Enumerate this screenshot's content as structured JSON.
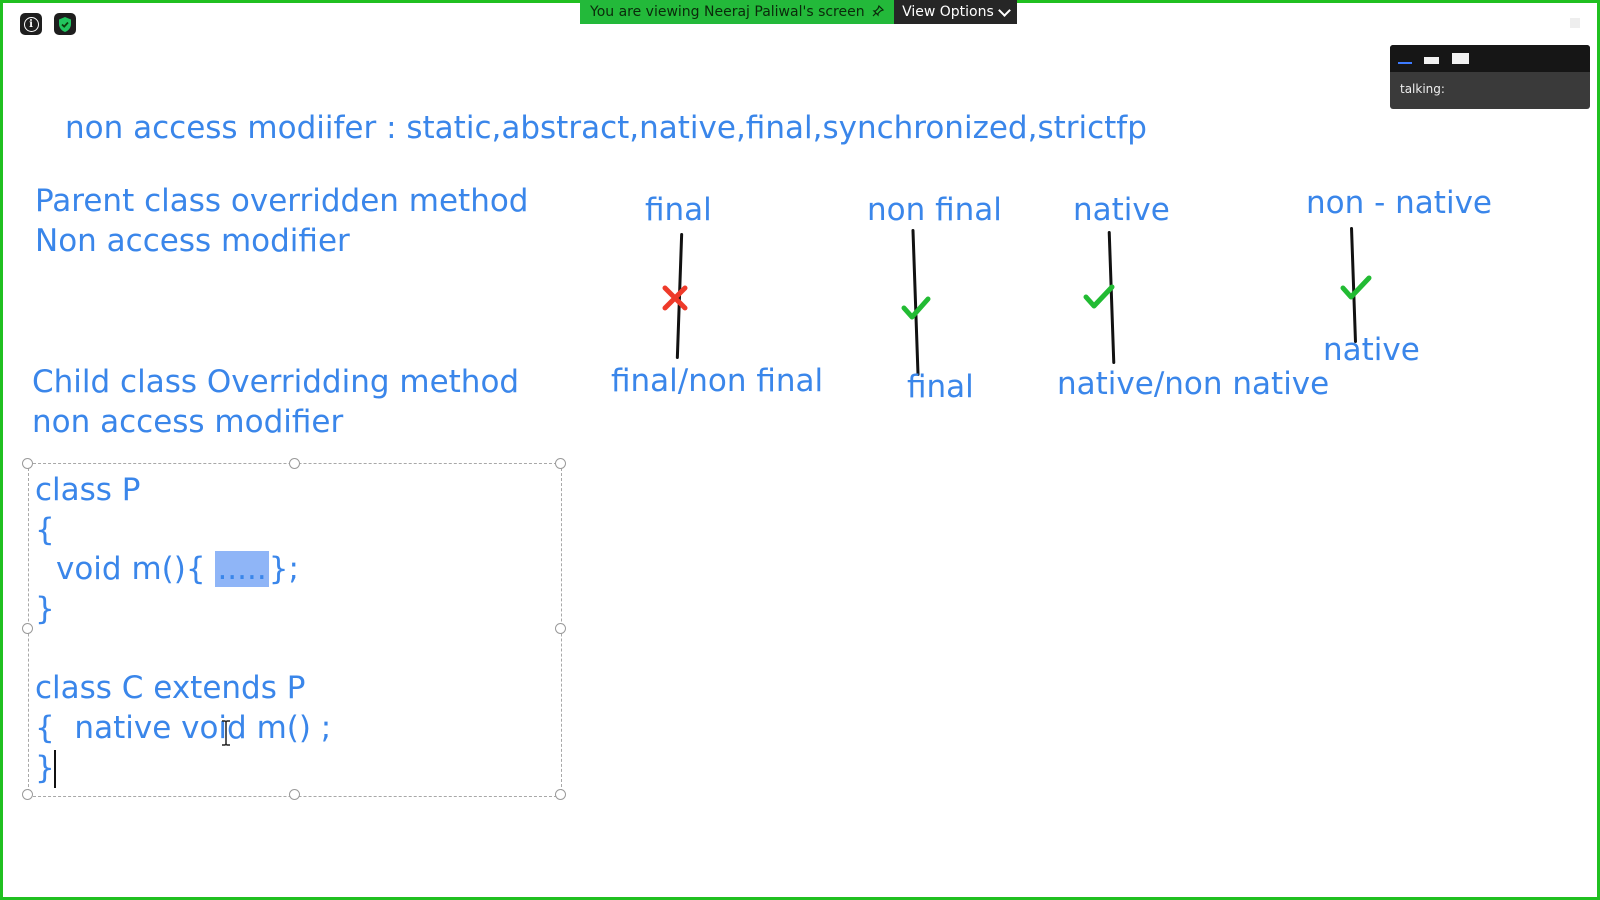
{
  "zoom_bar": {
    "viewing_text": "You are viewing Neeraj Paliwal's screen",
    "options_label": "View Options",
    "talking_label": "talking:"
  },
  "icons": [
    "info-icon",
    "shield-check-icon",
    "pin-icon",
    "chevron-down-icon",
    "check-mark-icon",
    "cross-mark-icon",
    "text-cursor-icon"
  ],
  "colors": {
    "text_blue": "#3a86ea",
    "check_green": "#22bb33",
    "cross_red": "#ee3a2a",
    "frame_green": "#20c020"
  },
  "slide": {
    "header": "non access modiifer : static,abstract,native,final,synchronized,strictfp",
    "parent_label_1": "Parent class overridden method",
    "parent_label_2": "Non access modifier",
    "child_label_1": "Child class Overridding method",
    "child_label_2": "non access modifier",
    "cases": [
      {
        "parent": "final",
        "child": "final/non final",
        "allowed": false
      },
      {
        "parent": "non final",
        "child": "final",
        "allowed": true
      },
      {
        "parent": "native",
        "child": "native/non native",
        "allowed": true
      },
      {
        "parent": "non - native",
        "child": "native",
        "allowed": true
      }
    ],
    "code": {
      "line1": "class P",
      "line2": "{",
      "line3_pre": "void m(){",
      "line3_hl": ".....",
      "line3_post": "};",
      "line4": "}",
      "line5": "class C extends P",
      "line6": "{  native void m() ;",
      "line7": "}"
    }
  }
}
